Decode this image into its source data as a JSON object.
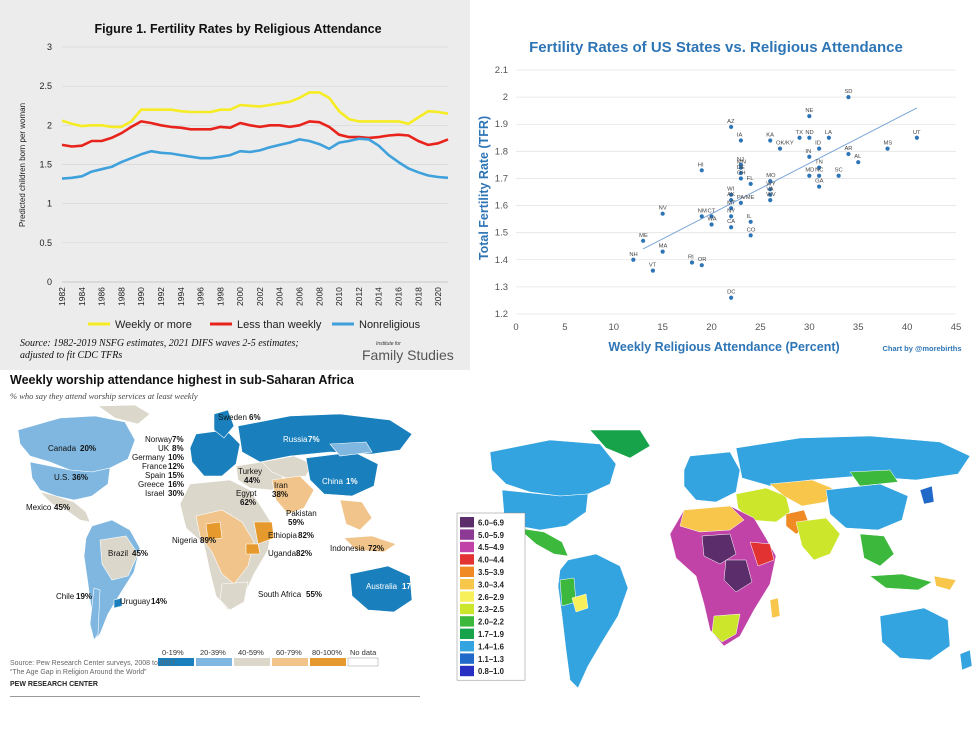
{
  "chart_data": [
    {
      "type": "line",
      "title": "Figure 1. Fertility Rates by Religious Attendance",
      "ylabel": "Predicted children born per woman",
      "xlabel": "",
      "ylim": [
        0,
        3
      ],
      "yticks": [
        "0",
        "0.5",
        "1",
        "1.5",
        "2",
        "2.5",
        "3"
      ],
      "xticks": [
        "1982",
        "1984",
        "1986",
        "1988",
        "1990",
        "1992",
        "1994",
        "1996",
        "1998",
        "2000",
        "2002",
        "2004",
        "2006",
        "2008",
        "2010",
        "2012",
        "2014",
        "2016",
        "2018",
        "2020"
      ],
      "x": [
        1982,
        1983,
        1984,
        1985,
        1986,
        1987,
        1988,
        1989,
        1990,
        1991,
        1992,
        1993,
        1994,
        1995,
        1996,
        1997,
        1998,
        1999,
        2000,
        2001,
        2002,
        2003,
        2004,
        2005,
        2006,
        2007,
        2008,
        2009,
        2010,
        2011,
        2012,
        2013,
        2014,
        2015,
        2016,
        2017,
        2018,
        2019,
        2020,
        2021
      ],
      "series": [
        {
          "name": "Weekly or more",
          "color": "#f6ec23",
          "values": [
            2.06,
            2.02,
            1.99,
            2.0,
            2.0,
            1.98,
            1.98,
            2.05,
            2.2,
            2.2,
            2.2,
            2.2,
            2.18,
            2.17,
            2.17,
            2.17,
            2.2,
            2.2,
            2.26,
            2.25,
            2.24,
            2.26,
            2.28,
            2.3,
            2.35,
            2.42,
            2.42,
            2.35,
            2.18,
            2.08,
            2.05,
            2.05,
            2.05,
            2.05,
            2.05,
            2.02,
            2.1,
            2.18,
            2.17,
            2.15
          ]
        },
        {
          "name": "Less than weekly",
          "color": "#e8231c",
          "values": [
            1.75,
            1.73,
            1.74,
            1.8,
            1.8,
            1.84,
            1.9,
            1.98,
            2.05,
            2.03,
            2.0,
            1.98,
            1.97,
            1.95,
            1.95,
            1.95,
            1.98,
            1.97,
            2.03,
            2.0,
            1.98,
            2.0,
            2.0,
            1.98,
            2.0,
            2.05,
            2.04,
            1.98,
            1.88,
            1.85,
            1.85,
            1.84,
            1.85,
            1.87,
            1.88,
            1.87,
            1.8,
            1.75,
            1.77,
            1.82
          ]
        },
        {
          "name": "Nonreligious",
          "color": "#3fa1dc",
          "values": [
            1.32,
            1.33,
            1.35,
            1.41,
            1.44,
            1.47,
            1.53,
            1.58,
            1.63,
            1.67,
            1.65,
            1.64,
            1.62,
            1.6,
            1.58,
            1.58,
            1.6,
            1.62,
            1.67,
            1.66,
            1.68,
            1.72,
            1.75,
            1.78,
            1.82,
            1.8,
            1.76,
            1.7,
            1.78,
            1.8,
            1.83,
            1.82,
            1.74,
            1.62,
            1.53,
            1.45,
            1.4,
            1.36,
            1.34,
            1.33
          ]
        }
      ],
      "legend": [
        "Weekly or more",
        "Less than weekly",
        "Nonreligious"
      ],
      "source": [
        "Source: 1982-2019 NSFG estimates, 2021 DIFS waves 2-5 estimates;",
        "adjusted to fit CDC TFRs"
      ],
      "logo_small": "Institute for",
      "logo_big": "Family Studies"
    },
    {
      "type": "scatter",
      "title": "Fertility Rates of US States vs. Religious Attendance",
      "xlabel": "Weekly Religious Attendance (Percent)",
      "ylabel": "Total Fertility Rate (TFR)",
      "xlim": [
        0,
        45
      ],
      "ylim": [
        1.2,
        2.1
      ],
      "xticks": [
        "0",
        "5",
        "10",
        "15",
        "20",
        "25",
        "30",
        "35",
        "40",
        "45"
      ],
      "yticks": [
        "1.2",
        "1.3",
        "1.4",
        "1.5",
        "1.6",
        "1.7",
        "1.8",
        "1.9",
        "2",
        "2.1"
      ],
      "credit": "Chart by @morebirths",
      "trendline": [
        [
          13,
          1.44
        ],
        [
          41,
          1.96
        ]
      ],
      "point_color": "#2e75b6",
      "points": [
        {
          "label": "SD",
          "x": 34,
          "y": 2.0
        },
        {
          "label": "NE",
          "x": 30,
          "y": 1.93
        },
        {
          "label": "AZ",
          "x": 22,
          "y": 1.89
        },
        {
          "label": "IA",
          "x": 23,
          "y": 1.84
        },
        {
          "label": "KA",
          "x": 26,
          "y": 1.84
        },
        {
          "label": "TX",
          "x": 29,
          "y": 1.85
        },
        {
          "label": "ND",
          "x": 30,
          "y": 1.85
        },
        {
          "label": "LA",
          "x": 32,
          "y": 1.85
        },
        {
          "label": "MS",
          "x": 38,
          "y": 1.81
        },
        {
          "label": "UT",
          "x": 41,
          "y": 1.85
        },
        {
          "label": "OK/KY",
          "x": 27,
          "y": 1.81
        },
        {
          "label": "ID",
          "x": 31,
          "y": 1.81
        },
        {
          "label": "IN",
          "x": 30,
          "y": 1.78
        },
        {
          "label": "AR",
          "x": 34,
          "y": 1.79
        },
        {
          "label": "AL",
          "x": 35,
          "y": 1.76
        },
        {
          "label": "HI",
          "x": 19,
          "y": 1.73
        },
        {
          "label": "NJ",
          "x": 23,
          "y": 1.75
        },
        {
          "label": "MN",
          "x": 23,
          "y": 1.74
        },
        {
          "label": "DE",
          "x": 23,
          "y": 1.72
        },
        {
          "label": "OH",
          "x": 23,
          "y": 1.7
        },
        {
          "label": "FL",
          "x": 24,
          "y": 1.68
        },
        {
          "label": "TN",
          "x": 31,
          "y": 1.74
        },
        {
          "label": "SC",
          "x": 33,
          "y": 1.71
        },
        {
          "label": "MD",
          "x": 30,
          "y": 1.71
        },
        {
          "label": "NC",
          "x": 31,
          "y": 1.71
        },
        {
          "label": "MO",
          "x": 26,
          "y": 1.69
        },
        {
          "label": "GA",
          "x": 31,
          "y": 1.67
        },
        {
          "label": "WY",
          "x": 26,
          "y": 1.66
        },
        {
          "label": "VA",
          "x": 26,
          "y": 1.64
        },
        {
          "label": "WI",
          "x": 22,
          "y": 1.64
        },
        {
          "label": "WV",
          "x": 26,
          "y": 1.62
        },
        {
          "label": "AK",
          "x": 22,
          "y": 1.62
        },
        {
          "label": "PA/ME",
          "x": 23,
          "y": 1.61
        },
        {
          "label": "MT",
          "x": 22,
          "y": 1.59
        },
        {
          "label": "NV",
          "x": 15,
          "y": 1.57
        },
        {
          "label": "NM",
          "x": 19,
          "y": 1.56
        },
        {
          "label": "CT",
          "x": 20,
          "y": 1.56
        },
        {
          "label": "NY",
          "x": 22,
          "y": 1.56
        },
        {
          "label": "WA",
          "x": 20,
          "y": 1.53
        },
        {
          "label": "IL",
          "x": 24,
          "y": 1.54
        },
        {
          "label": "CA",
          "x": 22,
          "y": 1.52
        },
        {
          "label": "CO",
          "x": 24,
          "y": 1.49
        },
        {
          "label": "ME",
          "x": 13,
          "y": 1.47
        },
        {
          "label": "MA",
          "x": 15,
          "y": 1.43
        },
        {
          "label": "NH",
          "x": 12,
          "y": 1.4
        },
        {
          "label": "RI",
          "x": 18,
          "y": 1.39
        },
        {
          "label": "OR",
          "x": 19,
          "y": 1.38
        },
        {
          "label": "VT",
          "x": 14,
          "y": 1.36
        },
        {
          "label": "DC",
          "x": 22,
          "y": 1.26
        }
      ]
    },
    {
      "type": "map",
      "title": "Weekly worship attendance highest in sub-Saharan Africa",
      "subtitle": "% who say they attend worship services at least weekly",
      "labels": [
        {
          "name": "Sweden",
          "value": "6%"
        },
        {
          "name": "Norway",
          "value": "7%"
        },
        {
          "name": "UK",
          "value": "8%"
        },
        {
          "name": "Germany",
          "value": "10%"
        },
        {
          "name": "France",
          "value": "12%"
        },
        {
          "name": "Spain",
          "value": "15%"
        },
        {
          "name": "Greece",
          "value": "16%"
        },
        {
          "name": "Israel",
          "value": "30%"
        },
        {
          "name": "Russia",
          "value": "7%"
        },
        {
          "name": "Turkey",
          "value": "44%"
        },
        {
          "name": "Iran",
          "value": "38%"
        },
        {
          "name": "Egypt",
          "value": "62%"
        },
        {
          "name": "Pakistan",
          "value": "59%"
        },
        {
          "name": "China",
          "value": "1%"
        },
        {
          "name": "Canada",
          "value": "20%"
        },
        {
          "name": "U.S.",
          "value": "36%"
        },
        {
          "name": "Mexico",
          "value": "45%"
        },
        {
          "name": "Brazil",
          "value": "45%"
        },
        {
          "name": "Chile",
          "value": "19%"
        },
        {
          "name": "Uruguay",
          "value": "14%"
        },
        {
          "name": "Nigeria",
          "value": "89%"
        },
        {
          "name": "Ethiopia",
          "value": "82%"
        },
        {
          "name": "Uganda",
          "value": "82%"
        },
        {
          "name": "South Africa",
          "value": "55%"
        },
        {
          "name": "Indonesia",
          "value": "72%"
        },
        {
          "name": "Australia",
          "value": "17%"
        }
      ],
      "legend": [
        {
          "label": "0-19%",
          "color": "#1a80bd"
        },
        {
          "label": "20-39%",
          "color": "#7fb7e0"
        },
        {
          "label": "40-59%",
          "color": "#dcd7cb"
        },
        {
          "label": "60-79%",
          "color": "#f0c48a"
        },
        {
          "label": "80-100%",
          "color": "#e69a2e"
        },
        {
          "label": "No data",
          "color": "#ffffff"
        }
      ],
      "notes": [
        "Source: Pew Research Center surveys, 2008 to 2017.",
        "“The Age Gap in Religion Around the World”"
      ],
      "org": "PEW RESEARCH CENTER"
    },
    {
      "type": "map",
      "title": "",
      "legend": [
        {
          "label": "6.0–6.9",
          "color": "#5c2d6b"
        },
        {
          "label": "5.0–5.9",
          "color": "#8d3a96"
        },
        {
          "label": "4.5–4.9",
          "color": "#c243a7"
        },
        {
          "label": "4.0–4.4",
          "color": "#e23232"
        },
        {
          "label": "3.5–3.9",
          "color": "#f08a24"
        },
        {
          "label": "3.0–3.4",
          "color": "#f7c64a"
        },
        {
          "label": "2.6–2.9",
          "color": "#f8f05a"
        },
        {
          "label": "2.3–2.5",
          "color": "#cce62c"
        },
        {
          "label": "2.0–2.2",
          "color": "#3cb93c"
        },
        {
          "label": "1.7–1.9",
          "color": "#16a34a"
        },
        {
          "label": "1.4–1.6",
          "color": "#34a4e0"
        },
        {
          "label": "1.1–1.3",
          "color": "#2069c9"
        },
        {
          "label": "0.8–1.0",
          "color": "#2a2fc4"
        }
      ]
    }
  ]
}
